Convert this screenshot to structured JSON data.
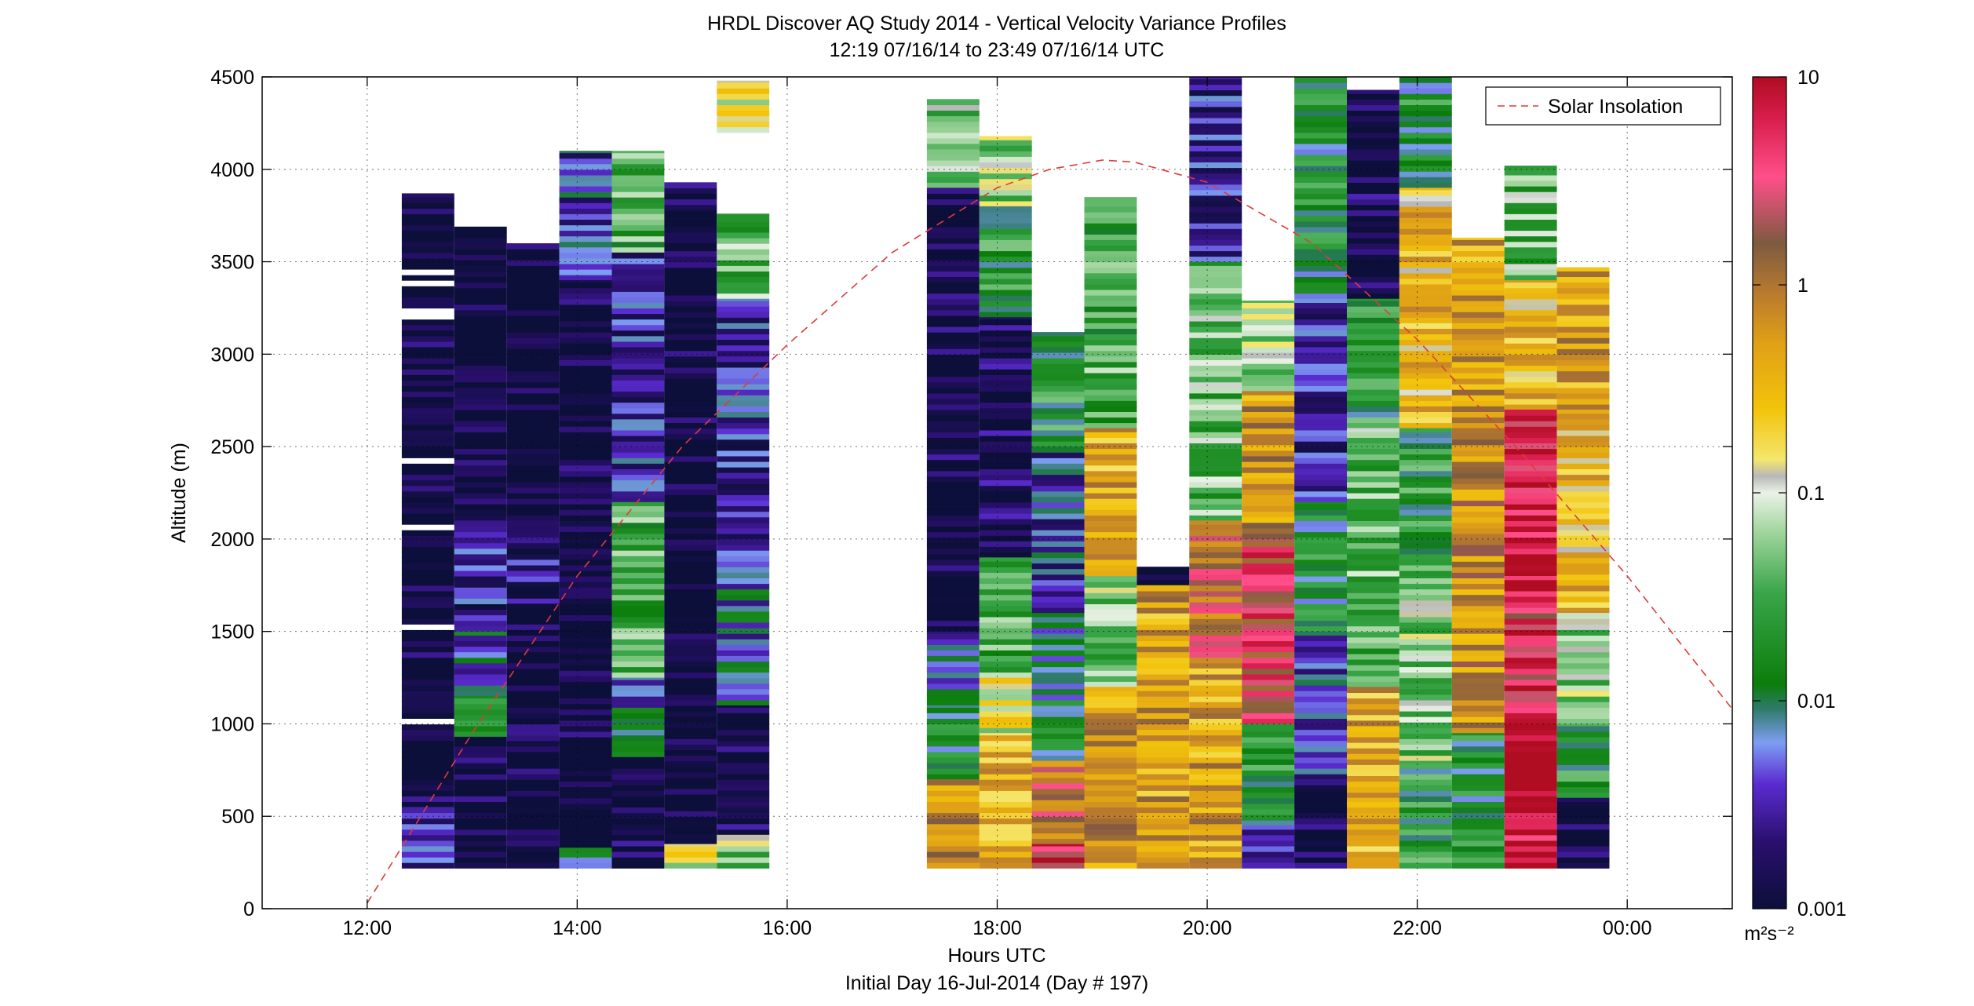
{
  "title_line1": "HRDL Discover AQ Study 2014 - Vertical Velocity Variance Profiles",
  "title_line2": "12:19 07/16/14 to 23:49 07/16/14  UTC",
  "xlabel": "Hours UTC",
  "xlabel2": "Initial Day 16-Jul-2014 (Day # 197)",
  "ylabel": "Altitude (m)",
  "legend_label": "Solar Insolation",
  "colorbar_unit": "m²s⁻²",
  "colors": {
    "solar_curve": "#e03a3a",
    "grid": "#000000",
    "no_data": "#ffffff",
    "colormap": [
      "#0c0f3a",
      "#2a0f6e",
      "#5a2bd0",
      "#7d9ef2",
      "#2f7a6a",
      "#0b7d0b",
      "#3aa64a",
      "#9dd39a",
      "#eaf2e6",
      "#b8b8b8",
      "#f5e66e",
      "#f2c40b",
      "#e0a017",
      "#b87a2e",
      "#7d5a40",
      "#ff4f8a",
      "#d81e4c",
      "#b00c22"
    ]
  },
  "chart_data": {
    "type": "heatmap",
    "title": "HRDL Discover AQ Study 2014 - Vertical Velocity Variance Profiles",
    "subtitle": "12:19 07/16/14 to 23:49 07/16/14  UTC",
    "xlabel": "Hours UTC",
    "ylabel": "Altitude (m)",
    "x_range_hours": [
      11.0,
      25.0
    ],
    "xticks": [
      12,
      14,
      16,
      18,
      20,
      22,
      24
    ],
    "xtick_labels": [
      "12:00",
      "14:00",
      "16:00",
      "18:00",
      "20:00",
      "22:00",
      "00:00"
    ],
    "ylim": [
      0,
      4500
    ],
    "yticks": [
      0,
      500,
      1000,
      1500,
      2000,
      2500,
      3000,
      3500,
      4000,
      4500
    ],
    "ytick_labels": [
      "0",
      "500",
      "1000",
      "1500",
      "2000",
      "2500",
      "3000",
      "3500",
      "4000",
      "4500"
    ],
    "grid": true,
    "legend_position": "top-right",
    "colorbar": {
      "scale": "log",
      "range": [
        0.001,
        10
      ],
      "ticks": [
        0.001,
        0.01,
        0.1,
        1,
        10
      ],
      "tick_labels": [
        "0.001",
        "0.01",
        "0.1",
        "1",
        "10"
      ],
      "unit": "m²s⁻²"
    },
    "series": [
      {
        "name": "Solar Insolation",
        "style": "dashed",
        "x_hours": [
          12.0,
          13.0,
          14.0,
          15.0,
          16.0,
          17.0,
          18.0,
          18.5,
          19.0,
          19.3,
          20.0,
          21.0,
          22.0,
          23.0,
          24.0,
          25.0
        ],
        "altitude_equiv_m": [
          30,
          950,
          1800,
          2500,
          3050,
          3550,
          3900,
          4000,
          4050,
          4040,
          3930,
          3600,
          3080,
          2460,
          1800,
          1080
        ]
      }
    ],
    "profiles": [
      {
        "start": 12.33,
        "end": 12.83,
        "top": 3870,
        "bottom": 220,
        "levels": [
          [
            2500,
            3870,
            0.001,
            "gaps"
          ],
          [
            550,
            2500,
            0.001,
            "gaps"
          ],
          [
            220,
            550,
            0.0025
          ]
        ]
      },
      {
        "start": 12.83,
        "end": 13.33,
        "top": 3690,
        "bottom": 220,
        "levels": [
          [
            2100,
            3690,
            0.001
          ],
          [
            1500,
            2100,
            0.0025
          ],
          [
            1150,
            1500,
            0.006
          ],
          [
            930,
            1150,
            0.012
          ],
          [
            220,
            930,
            0.001
          ]
        ]
      },
      {
        "start": 13.33,
        "end": 13.83,
        "top": 3600,
        "bottom": 220,
        "levels": [
          [
            2100,
            3600,
            0.001
          ],
          [
            1650,
            2100,
            0.002
          ],
          [
            220,
            1650,
            0.001
          ]
        ]
      },
      {
        "start": 13.83,
        "end": 14.33,
        "top": 4100,
        "bottom": 220,
        "levels": [
          [
            3400,
            4100,
            0.004
          ],
          [
            330,
            3400,
            0.001
          ],
          [
            220,
            330,
            0.006
          ]
        ]
      },
      {
        "start": 14.33,
        "end": 14.83,
        "top": 4100,
        "bottom": 220,
        "levels": [
          [
            3550,
            4100,
            0.03
          ],
          [
            2200,
            3550,
            0.003
          ],
          [
            1250,
            2200,
            0.03
          ],
          [
            820,
            1250,
            0.007
          ],
          [
            220,
            820,
            0.0015
          ]
        ]
      },
      {
        "start": 14.83,
        "end": 15.33,
        "top": 3930,
        "bottom": 220,
        "levels": [
          [
            3600,
            3930,
            0.0012
          ],
          [
            350,
            3600,
            0.001
          ],
          [
            220,
            350,
            0.1
          ]
        ]
      },
      {
        "start": 15.33,
        "end": 15.83,
        "top": 4480,
        "bottom": 220,
        "levels": [
          [
            4200,
            4480,
            0.15
          ],
          [
            3300,
            3760,
            0.04
          ],
          [
            2000,
            3300,
            0.003
          ],
          [
            1100,
            2000,
            0.006
          ],
          [
            400,
            1100,
            0.0012
          ],
          [
            220,
            400,
            0.06
          ]
        ]
      },
      {
        "start": 17.33,
        "end": 17.83,
        "top": 4380,
        "bottom": 220,
        "levels": [
          [
            3900,
            4380,
            0.05
          ],
          [
            2400,
            3900,
            0.0012
          ],
          [
            1500,
            2400,
            0.001
          ],
          [
            1100,
            1500,
            0.005
          ],
          [
            700,
            1100,
            0.015
          ],
          [
            220,
            700,
            0.6
          ]
        ]
      },
      {
        "start": 17.83,
        "end": 18.33,
        "top": 4180,
        "bottom": 220,
        "levels": [
          [
            3800,
            4180,
            0.06
          ],
          [
            3200,
            3800,
            0.02
          ],
          [
            1900,
            3200,
            0.0015
          ],
          [
            1250,
            1900,
            0.03
          ],
          [
            950,
            1250,
            0.12
          ],
          [
            220,
            950,
            0.4
          ]
        ]
      },
      {
        "start": 18.33,
        "end": 18.83,
        "top": 3120,
        "bottom": 220,
        "levels": [
          [
            2500,
            3120,
            0.02
          ],
          [
            1600,
            2500,
            0.004
          ],
          [
            800,
            1600,
            0.01
          ],
          [
            350,
            800,
            1.2
          ],
          [
            220,
            350,
            4.0
          ]
        ]
      },
      {
        "start": 18.83,
        "end": 19.33,
        "top": 3850,
        "bottom": 220,
        "levels": [
          [
            2600,
            3850,
            0.03
          ],
          [
            1800,
            2600,
            0.4
          ],
          [
            1200,
            1800,
            0.05
          ],
          [
            220,
            1200,
            0.6
          ]
        ]
      },
      {
        "start": 19.33,
        "end": 19.83,
        "top": 1850,
        "bottom": 220,
        "levels": [
          [
            1750,
            1850,
            0.001
          ],
          [
            220,
            1750,
            0.5
          ]
        ]
      },
      {
        "start": 19.83,
        "end": 20.33,
        "top": 4500,
        "bottom": 220,
        "levels": [
          [
            3500,
            4500,
            0.003
          ],
          [
            2100,
            3500,
            0.04
          ],
          [
            1300,
            2100,
            1.5
          ],
          [
            220,
            1300,
            0.5
          ]
        ]
      },
      {
        "start": 20.33,
        "end": 20.83,
        "top": 3290,
        "bottom": 220,
        "levels": [
          [
            2800,
            3290,
            0.06
          ],
          [
            2000,
            2800,
            0.6
          ],
          [
            1000,
            2000,
            3.0
          ],
          [
            450,
            1000,
            0.02
          ],
          [
            220,
            450,
            0.005
          ]
        ]
      },
      {
        "start": 20.83,
        "end": 21.33,
        "top": 4500,
        "bottom": 220,
        "levels": [
          [
            3300,
            4500,
            0.015
          ],
          [
            2200,
            3300,
            0.003
          ],
          [
            1500,
            2200,
            0.015
          ],
          [
            700,
            1500,
            0.005
          ],
          [
            220,
            700,
            0.001
          ]
        ]
      },
      {
        "start": 21.33,
        "end": 21.83,
        "top": 4430,
        "bottom": 220,
        "levels": [
          [
            3300,
            4430,
            0.0012
          ],
          [
            2600,
            3300,
            0.02
          ],
          [
            1200,
            2600,
            0.04
          ],
          [
            600,
            1200,
            0.4
          ],
          [
            220,
            600,
            0.3
          ]
        ]
      },
      {
        "start": 21.83,
        "end": 22.33,
        "top": 4500,
        "bottom": 220,
        "levels": [
          [
            3900,
            4500,
            0.015
          ],
          [
            2600,
            3900,
            0.3
          ],
          [
            1800,
            2600,
            0.02
          ],
          [
            800,
            1800,
            0.05
          ],
          [
            220,
            800,
            0.02
          ]
        ]
      },
      {
        "start": 22.33,
        "end": 22.83,
        "top": 3630,
        "bottom": 220,
        "levels": [
          [
            2600,
            3630,
            0.5
          ],
          [
            950,
            2600,
            0.7
          ],
          [
            220,
            950,
            0.015
          ]
        ]
      },
      {
        "start": 22.83,
        "end": 23.33,
        "top": 4020,
        "bottom": 220,
        "levels": [
          [
            3400,
            4020,
            0.04
          ],
          [
            2700,
            3400,
            0.3
          ],
          [
            1800,
            2700,
            6.0
          ],
          [
            1000,
            1800,
            4.0
          ],
          [
            220,
            1000,
            9.0
          ]
        ]
      },
      {
        "start": 23.33,
        "end": 23.83,
        "top": 3470,
        "bottom": 220,
        "levels": [
          [
            2700,
            3470,
            0.5
          ],
          [
            1600,
            2700,
            0.3
          ],
          [
            1000,
            1600,
            0.06
          ],
          [
            600,
            1000,
            0.02
          ],
          [
            220,
            600,
            0.001
          ]
        ]
      }
    ]
  }
}
